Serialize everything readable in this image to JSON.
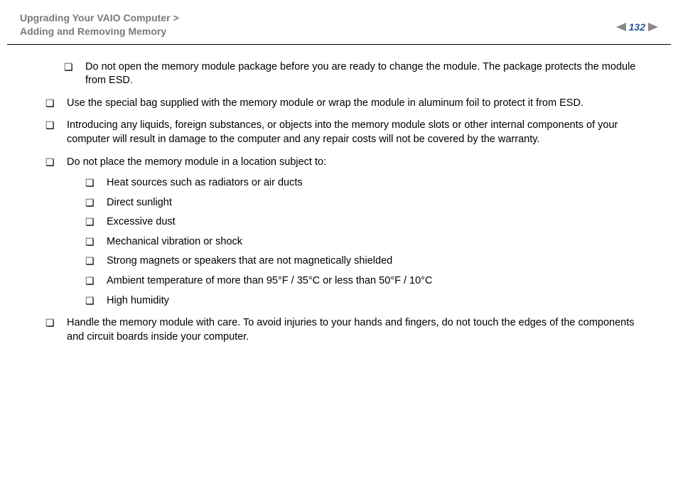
{
  "header": {
    "breadcrumb_line1": "Upgrading Your VAIO Computer >",
    "breadcrumb_line2": "Adding and Removing Memory",
    "page_number": "132",
    "arrow_color": "#7a7a7a",
    "pagenum_color": "#2a5a9a"
  },
  "items": [
    {
      "text": "Do not open the memory module package before you are ready to change the module. The package protects the module from ESD.",
      "first": true
    },
    {
      "text": "Use the special bag supplied with the memory module or wrap the module in aluminum foil to protect it from ESD."
    },
    {
      "text": "Introducing any liquids, foreign substances, or objects into the memory module slots or other internal components of your computer will result in damage to the computer and any repair costs will not be covered by the warranty."
    },
    {
      "text": "Do not place the memory module in a location subject to:",
      "sub": [
        "Heat sources such as radiators or air ducts",
        "Direct sunlight",
        "Excessive dust",
        "Mechanical vibration or shock",
        "Strong magnets or speakers that are not magnetically shielded",
        "Ambient temperature of more than 95°F / 35°C or less than 50°F / 10°C",
        "High humidity"
      ]
    },
    {
      "text": "Handle the memory module with care. To avoid injuries to your hands and fingers, do not touch the edges of the components and circuit boards inside your computer."
    }
  ]
}
